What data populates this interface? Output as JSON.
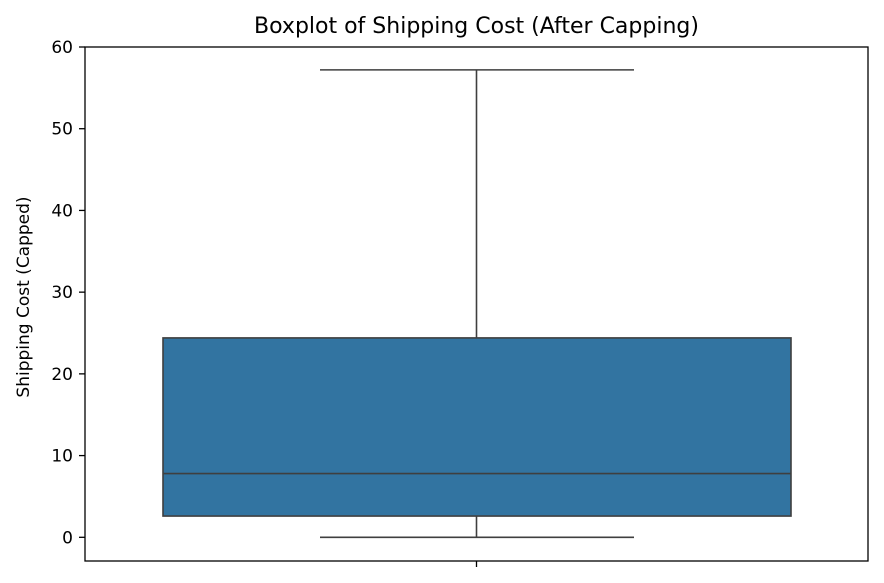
{
  "chart_data": {
    "type": "box",
    "title": "Boxplot of Shipping Cost (After Capping)",
    "xlabel": "",
    "ylabel": "Shipping Cost (Capped)",
    "ylim": [
      -2.9,
      60
    ],
    "yticks": [
      0,
      10,
      20,
      30,
      40,
      50,
      60
    ],
    "grid": false,
    "box": {
      "whisker_low": 0,
      "q1": 2.6,
      "median": 7.8,
      "q3": 24.4,
      "whisker_high": 57.2
    },
    "colors": {
      "box_fill": "#3274a1",
      "line": "#3f3f3f",
      "axis": "#000000"
    }
  }
}
